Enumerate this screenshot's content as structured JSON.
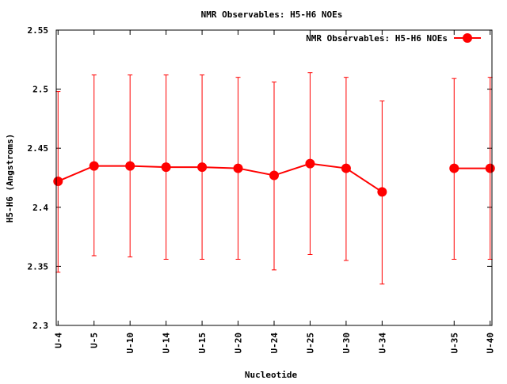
{
  "chart_data": {
    "type": "line",
    "title": "NMR Observables: H5-H6 NOEs",
    "xlabel": "Nucleotide",
    "ylabel": "H5-H6 (Angstroms)",
    "ylim": [
      2.3,
      2.55
    ],
    "yticks": [
      2.3,
      2.35,
      2.4,
      2.45,
      2.5,
      2.55
    ],
    "ytick_labels": [
      "2.3",
      "2.35",
      "2.4",
      "2.45",
      "2.5",
      "2.55"
    ],
    "x_positions": [
      0,
      1,
      2,
      3,
      4,
      5,
      6,
      7,
      8,
      9,
      11,
      12
    ],
    "x_range": [
      -0.05,
      12.05
    ],
    "categories": [
      "U-4",
      "U-5",
      "U-10",
      "U-14",
      "U-15",
      "U-20",
      "U-24",
      "U-25",
      "U-30",
      "U-34",
      "U-35",
      "U-40"
    ],
    "series": [
      {
        "name": "NMR Observables: H5-H6 NOEs",
        "color": "#ff0000",
        "values": [
          2.422,
          2.435,
          2.435,
          2.434,
          2.434,
          2.433,
          2.427,
          2.437,
          2.433,
          2.413,
          2.433,
          2.433
        ],
        "err_low": [
          2.345,
          2.359,
          2.358,
          2.356,
          2.356,
          2.356,
          2.347,
          2.36,
          2.355,
          2.335,
          2.356,
          2.356
        ],
        "err_high": [
          2.498,
          2.512,
          2.512,
          2.512,
          2.512,
          2.51,
          2.506,
          2.514,
          2.51,
          2.49,
          2.509,
          2.51
        ],
        "line_segments": [
          [
            0,
            9
          ],
          [
            10,
            11
          ]
        ]
      }
    ],
    "grid": false,
    "legend_position": "top-right"
  }
}
